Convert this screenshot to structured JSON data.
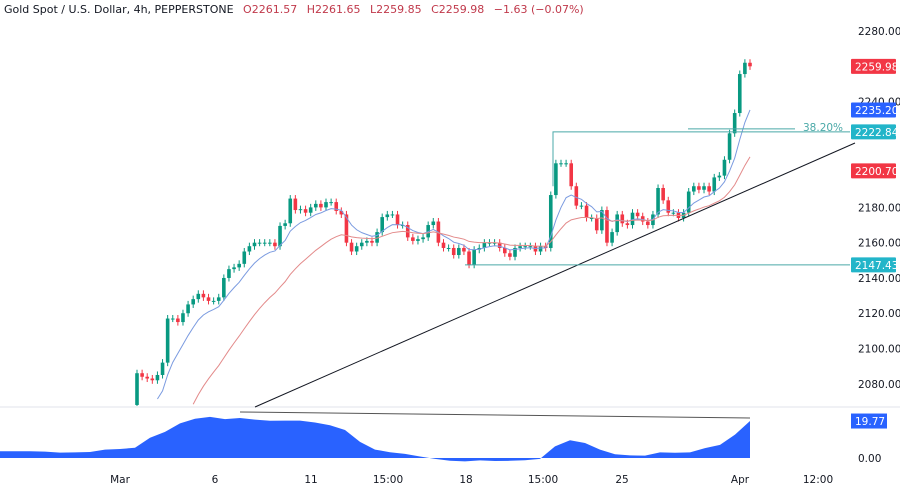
{
  "header": {
    "symbol": "Gold Spot / U.S. Dollar, 4h, PEPPERSTONE",
    "open": "O2261.57",
    "high": "H2261.65",
    "low": "L2259.85",
    "close": "C2259.98",
    "change": "−1.63 (−0.07%)"
  },
  "chart_data": [
    {
      "type": "candlestick",
      "title": "Gold Spot / U.S. Dollar, 4h, PEPPERSTONE",
      "first_open": 2068,
      "closes": [
        2086,
        2084,
        2083,
        2082,
        2085,
        2092,
        2117,
        2117,
        2115,
        2120,
        2125,
        2128,
        2131,
        2129,
        2127,
        2127,
        2129,
        2140,
        2145,
        2146,
        2148,
        2155,
        2158,
        2160,
        2160,
        2160,
        2160,
        2158,
        2169.5,
        2171,
        2185,
        2178.5,
        2179,
        2177,
        2180,
        2182,
        2180,
        2183,
        2183,
        2178,
        2176,
        2160,
        2155,
        2158,
        2160,
        2161,
        2160,
        2166,
        2174.5,
        2176,
        2176,
        2170,
        2170,
        2163,
        2161,
        2162,
        2163,
        2170,
        2172,
        2160,
        2157,
        2157,
        2153,
        2157,
        2155,
        2147.5,
        2156,
        2157,
        2160,
        2160,
        2160,
        2157,
        2154,
        2152,
        2157,
        2158,
        2158,
        2158,
        2155,
        2158,
        2157,
        2187,
        2205,
        2205,
        2205,
        2192,
        2181,
        2181,
        2174,
        2174,
        2167,
        2178.5,
        2160,
        2166,
        2176,
        2171,
        2170,
        2177,
        2175,
        2172,
        2170,
        2176,
        2191,
        2184,
        2177,
        2177,
        2174,
        2177,
        2189,
        2192,
        2190,
        2192,
        2189,
        2197,
        2198,
        2207,
        2222,
        2233.5,
        2255.6,
        2262,
        2259.98
      ],
      "y_ticks": [
        "2280.00",
        "2240.00",
        "2180.00",
        "2160.00",
        "2140.00",
        "2120.00",
        "2100.00",
        "2080.00"
      ],
      "ylim": [
        2065,
        2289
      ],
      "x_ticks": [
        "Mar",
        "6",
        "11",
        "15:00",
        "18",
        "15:00",
        "25",
        "Apr",
        "12:00"
      ],
      "moving_averages": [
        {
          "color": "#7b9be0",
          "value": 2235.2
        },
        {
          "color": "#e38a8a",
          "value": 2200.7
        }
      ],
      "price_badges": [
        {
          "label": "2259.98",
          "value": 2259.98,
          "color": "#f23645"
        },
        {
          "label": "2235.20",
          "value": 2235.2,
          "color": "#2962ff"
        },
        {
          "label": "2222.84",
          "value": 2222.84,
          "color": "#22b5c9"
        },
        {
          "label": "2200.70",
          "value": 2200.7,
          "color": "#f23645"
        },
        {
          "label": "2147.43",
          "value": 2147.43,
          "color": "#22b5c9"
        }
      ],
      "drawings": {
        "fib_label": "38.20%",
        "resistance": 2222.84,
        "support": 2147.43,
        "line_color": "#4aa9a8"
      },
      "up_color": "#089981",
      "down_color": "#f23645"
    },
    {
      "type": "area",
      "values": [
        3.6,
        3.6,
        3.6,
        3.4,
        2.9,
        3.0,
        3.2,
        4.5,
        4.8,
        5.5,
        10.8,
        14,
        18.5,
        21,
        22,
        20.8,
        21.4,
        20.5,
        19.9,
        20,
        20,
        19,
        17.5,
        15,
        8.6,
        4.5,
        3.1,
        2.2,
        0.8,
        -0.5,
        -1.5,
        -1.8,
        -1.3,
        -1.6,
        -1.5,
        -1.2,
        -0.5,
        6.2,
        9.5,
        8,
        4.5,
        2,
        1.4,
        1.3,
        3,
        2.8,
        3,
        5.3,
        7,
        12.5,
        19.77
      ],
      "last_label": "19.77",
      "zero_label": "0.00",
      "color": "#2962ff"
    }
  ]
}
